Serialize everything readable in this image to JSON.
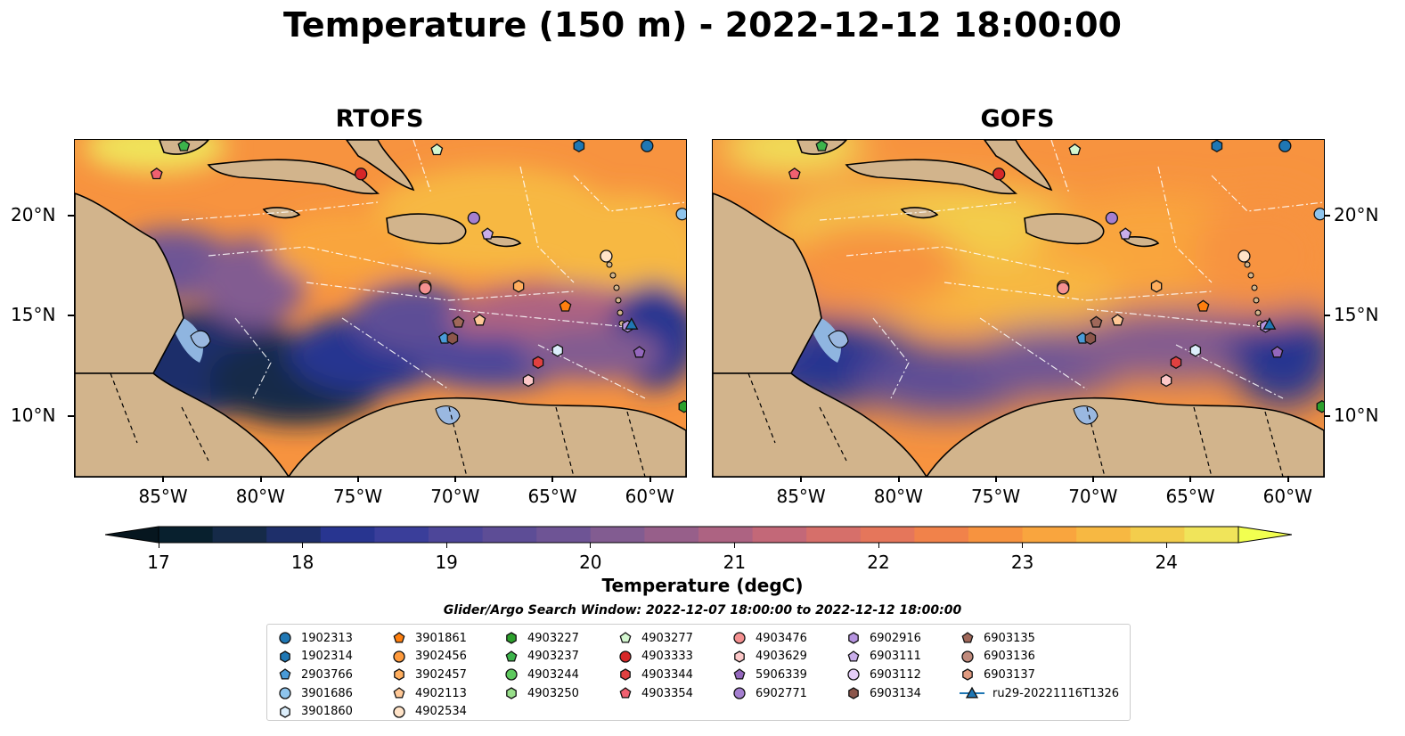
{
  "title": "Temperature (150 m) - 2022-12-12 18:00:00",
  "panels": [
    {
      "title": "RTOFS",
      "variant": "rtofs"
    },
    {
      "title": "GOFS",
      "variant": "gofs"
    }
  ],
  "axes": {
    "lon_ticks": [
      "85°W",
      "80°W",
      "75°W",
      "70°W",
      "65°W",
      "60°W"
    ],
    "lon_values": [
      -85,
      -80,
      -75,
      -70,
      -65,
      -60
    ],
    "lat_ticks": [
      "20°N",
      "15°N",
      "10°N"
    ],
    "lat_values": [
      20,
      15,
      10
    ],
    "lon_range": [
      -89.6,
      -58.2
    ],
    "lat_range": [
      7.0,
      23.8
    ]
  },
  "colorbar": {
    "label": "Temperature (degC)",
    "range": [
      17.0,
      24.5
    ],
    "ticks": [
      "17",
      "18",
      "19",
      "20",
      "21",
      "22",
      "23",
      "24"
    ],
    "tick_values": [
      17,
      18,
      19,
      20,
      21,
      22,
      23,
      24
    ],
    "colors": [
      "#08202e",
      "#152a48",
      "#1e2f6a",
      "#283590",
      "#3a3e9a",
      "#4d4699",
      "#5d4d96",
      "#6e5495",
      "#825c91",
      "#975f8a",
      "#ad6382",
      "#c36878",
      "#d66f6a",
      "#e5765b",
      "#f1824a",
      "#f7933f",
      "#f9a53e",
      "#f7b842",
      "#f3cd4c",
      "#f0e45a"
    ],
    "extend_high": "#f2ff50",
    "extend_low": "#06161f"
  },
  "search_window": "Glider/Argo Search Window: 2022-12-07 18:00:00 to 2022-12-12 18:00:00",
  "legend": {
    "columns": [
      [
        {
          "label": "1902313",
          "marker": "circle",
          "color": "#1f77b4"
        },
        {
          "label": "1902314",
          "marker": "hexagon",
          "color": "#1f77b4"
        },
        {
          "label": "2903766",
          "marker": "pentagon",
          "color": "#4a9bd8"
        },
        {
          "label": "3901686",
          "marker": "circle",
          "color": "#8ec4ec"
        },
        {
          "label": "3901860",
          "marker": "hexagon",
          "color": "#dceefb"
        }
      ],
      [
        {
          "label": "3901861",
          "marker": "pentagon",
          "color": "#ff7f0e"
        },
        {
          "label": "3902456",
          "marker": "circle",
          "color": "#ff9a3c"
        },
        {
          "label": "3902457",
          "marker": "hexagon",
          "color": "#ffae5e"
        },
        {
          "label": "4902113",
          "marker": "pentagon",
          "color": "#ffc896"
        },
        {
          "label": "4902534",
          "marker": "circle",
          "color": "#ffe3c8"
        }
      ],
      [
        {
          "label": "4903227",
          "marker": "hexagon",
          "color": "#2ca02c"
        },
        {
          "label": "4903237",
          "marker": "pentagon",
          "color": "#3cb44b"
        },
        {
          "label": "4903244",
          "marker": "circle",
          "color": "#5ec95e"
        },
        {
          "label": "4903250",
          "marker": "hexagon",
          "color": "#98df8a"
        }
      ],
      [
        {
          "label": "4903277",
          "marker": "pentagon",
          "color": "#d4f7d0"
        },
        {
          "label": "4903333",
          "marker": "circle",
          "color": "#d62728"
        },
        {
          "label": "4903344",
          "marker": "hexagon",
          "color": "#e04040"
        },
        {
          "label": "4903354",
          "marker": "pentagon",
          "color": "#f06070"
        }
      ],
      [
        {
          "label": "4903476",
          "marker": "circle",
          "color": "#f49090"
        },
        {
          "label": "4903629",
          "marker": "hexagon",
          "color": "#fcc8c8"
        },
        {
          "label": "5906339",
          "marker": "pentagon",
          "color": "#9467bd"
        },
        {
          "label": "6902771",
          "marker": "circle",
          "color": "#a57fd0"
        }
      ],
      [
        {
          "label": "6902916",
          "marker": "hexagon",
          "color": "#b694e0"
        },
        {
          "label": "6903111",
          "marker": "pentagon",
          "color": "#c9aeea"
        },
        {
          "label": "6903112",
          "marker": "circle",
          "color": "#e4cdf7"
        },
        {
          "label": "6903134",
          "marker": "hexagon",
          "color": "#8c564b"
        }
      ],
      [
        {
          "label": "6903135",
          "marker": "pentagon",
          "color": "#a0685a"
        },
        {
          "label": "6903136",
          "marker": "circle",
          "color": "#c08a7c"
        },
        {
          "label": "6903137",
          "marker": "hexagon",
          "color": "#e09a80"
        },
        {
          "label": "ru29-20221116T1326",
          "marker": "triangle-line",
          "color": "#1f77b4"
        }
      ]
    ]
  },
  "observations": [
    {
      "label": "1902313",
      "lon": -60.2,
      "lat": 23.5
    },
    {
      "label": "1902314",
      "lon": -63.7,
      "lat": 23.5
    },
    {
      "label": "2903766",
      "lon": -70.6,
      "lat": 13.9
    },
    {
      "label": "3901686",
      "lon": -58.4,
      "lat": 20.1
    },
    {
      "label": "3901860",
      "lon": -64.8,
      "lat": 13.3
    },
    {
      "label": "3901861",
      "lon": -64.4,
      "lat": 15.5
    },
    {
      "label": "3902456",
      "lon": -71.6,
      "lat": 16.5
    },
    {
      "label": "3902457",
      "lon": -66.8,
      "lat": 16.5
    },
    {
      "label": "4902113",
      "lon": -68.8,
      "lat": 14.8
    },
    {
      "label": "4902534",
      "lon": -62.3,
      "lat": 18.0
    },
    {
      "label": "4903227",
      "lon": -58.3,
      "lat": 10.5
    },
    {
      "label": "4903237",
      "lon": -84.0,
      "lat": 23.5
    },
    {
      "label": "4903333",
      "lon": -74.9,
      "lat": 22.1
    },
    {
      "label": "4903344",
      "lon": -65.8,
      "lat": 12.7
    },
    {
      "label": "4903354",
      "lon": -85.4,
      "lat": 22.1
    },
    {
      "label": "4903476",
      "lon": -71.6,
      "lat": 16.4
    },
    {
      "label": "4903629",
      "lon": -66.3,
      "lat": 11.8
    },
    {
      "label": "4903277",
      "lon": -71.0,
      "lat": 23.3
    },
    {
      "label": "5906339",
      "lon": -60.6,
      "lat": 13.2
    },
    {
      "label": "6902771",
      "lon": -69.1,
      "lat": 19.9
    },
    {
      "label": "6902916",
      "lon": -61.2,
      "lat": 14.5
    },
    {
      "label": "6903111",
      "lon": -68.4,
      "lat": 19.1
    },
    {
      "label": "6903134",
      "lon": -70.2,
      "lat": 13.9
    },
    {
      "label": "6903135",
      "lon": -69.9,
      "lat": 14.7
    },
    {
      "label": "ru29-20221116T1326",
      "lon": -61.0,
      "lat": 14.6
    }
  ]
}
